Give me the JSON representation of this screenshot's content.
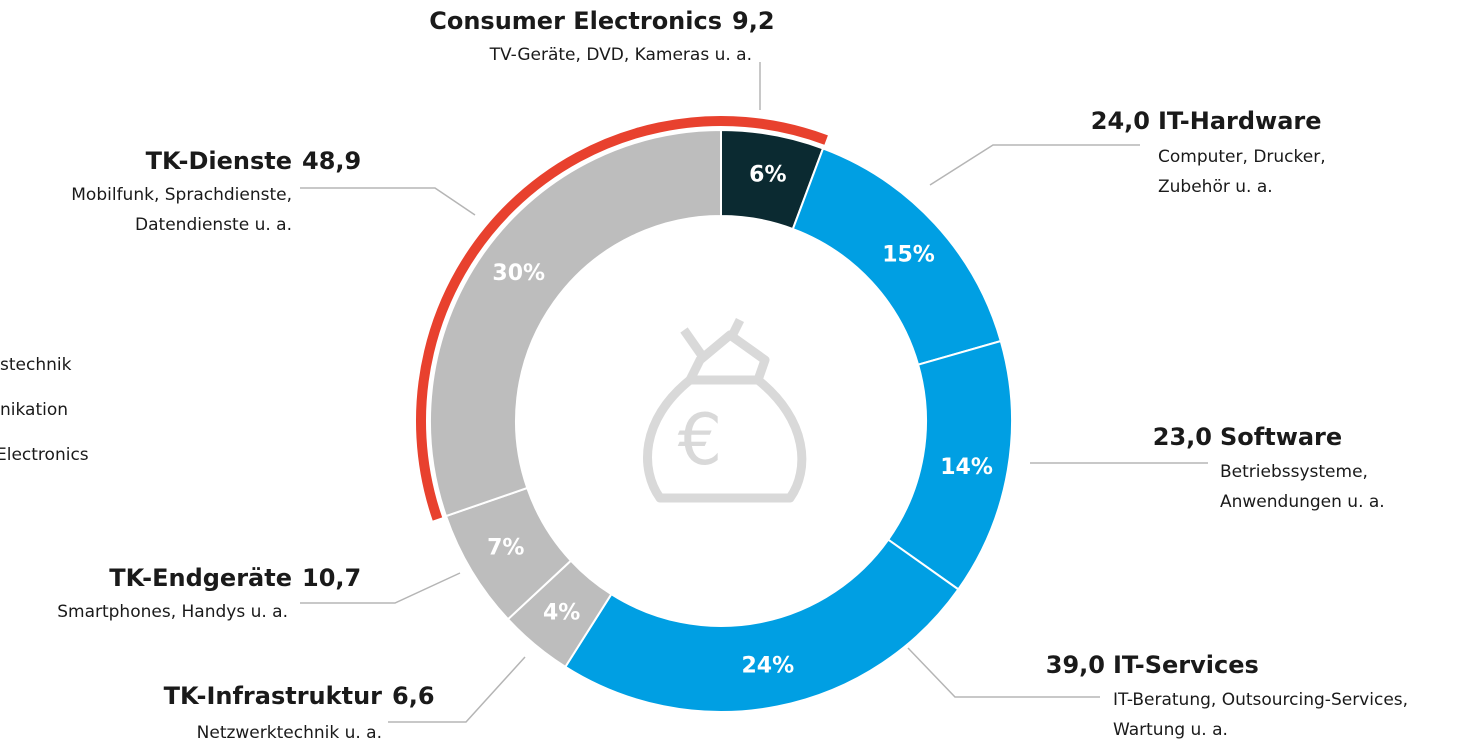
{
  "chart_data": {
    "type": "donut",
    "categories": [
      "Consumer Electronics",
      "IT-Hardware",
      "Software",
      "IT-Services",
      "TK-Infrastruktur",
      "TK-Endgeräte",
      "TK-Dienste"
    ],
    "descriptions": [
      [
        "TV-Geräte, DVD, Kameras u. a."
      ],
      [
        "Computer, Drucker,",
        "Zubehör u. a."
      ],
      [
        "Betriebssysteme,",
        "Anwendungen u. a."
      ],
      [
        "IT-Beratung, Outsourcing-Services,",
        "Wartung u. a."
      ],
      [
        "Netzwerktechnik u. a."
      ],
      [
        "Smartphones, Handys u. a."
      ],
      [
        "Mobilfunk, Sprachdienste,",
        "Datendienste u. a."
      ]
    ],
    "values": [
      9.2,
      24.0,
      23.0,
      39.0,
      6.6,
      10.7,
      48.9
    ],
    "value_labels": [
      "9,2",
      "24,0",
      "23,0",
      "39,0",
      "6,6",
      "10,7",
      "48,9"
    ],
    "shares": [
      6,
      15,
      14,
      24,
      4,
      7,
      30
    ],
    "share_labels": [
      "6%",
      "15%",
      "14%",
      "24%",
      "4%",
      "7%",
      "30%"
    ],
    "colors": [
      "#0b2a31",
      "#009fe3",
      "#009fe3",
      "#009fe3",
      "#bdbdbd",
      "#bdbdbd",
      "#bdbdbd"
    ],
    "legend": [
      "stechnik",
      "nikation",
      "Electronics"
    ]
  }
}
